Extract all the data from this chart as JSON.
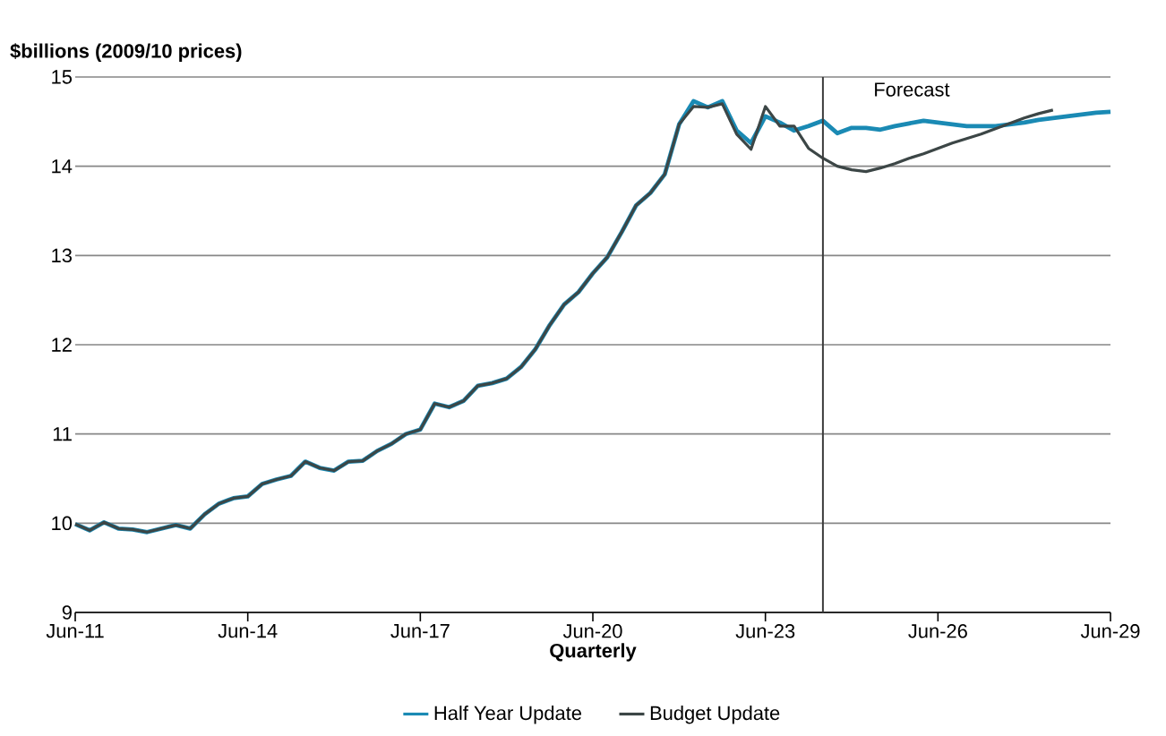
{
  "chart_data": {
    "type": "line",
    "ylabel": "$billions (2009/10 prices)",
    "xlabel": "Quarterly",
    "x": [
      "2011-06",
      "2011-09",
      "2011-12",
      "2012-03",
      "2012-06",
      "2012-09",
      "2012-12",
      "2013-03",
      "2013-06",
      "2013-09",
      "2013-12",
      "2014-03",
      "2014-06",
      "2014-09",
      "2014-12",
      "2015-03",
      "2015-06",
      "2015-09",
      "2015-12",
      "2016-03",
      "2016-06",
      "2016-09",
      "2016-12",
      "2017-03",
      "2017-06",
      "2017-09",
      "2017-12",
      "2018-03",
      "2018-06",
      "2018-09",
      "2018-12",
      "2019-03",
      "2019-06",
      "2019-09",
      "2019-12",
      "2020-03",
      "2020-06",
      "2020-09",
      "2020-12",
      "2021-03",
      "2021-06",
      "2021-09",
      "2021-12",
      "2022-03",
      "2022-06",
      "2022-09",
      "2022-12",
      "2023-03",
      "2023-06",
      "2023-09",
      "2023-12",
      "2024-03",
      "2024-06",
      "2024-09",
      "2024-12",
      "2025-03",
      "2025-06",
      "2025-09",
      "2025-12",
      "2026-03",
      "2026-06",
      "2026-09",
      "2026-12",
      "2027-03",
      "2027-06",
      "2027-09",
      "2027-12",
      "2028-03",
      "2028-06",
      "2028-09",
      "2028-12",
      "2029-03",
      "2029-06"
    ],
    "series": [
      {
        "name": "Half Year Update",
        "color": "#1a8ab4",
        "values": [
          9.99,
          9.92,
          10.01,
          9.94,
          9.93,
          9.9,
          9.94,
          9.98,
          9.94,
          10.1,
          10.22,
          10.28,
          10.3,
          10.44,
          10.49,
          10.53,
          10.69,
          10.62,
          10.59,
          10.69,
          10.7,
          10.81,
          10.89,
          11.0,
          11.05,
          11.34,
          11.3,
          11.37,
          11.54,
          11.57,
          11.62,
          11.75,
          11.95,
          12.22,
          12.45,
          12.59,
          12.8,
          12.98,
          13.26,
          13.56,
          13.7,
          13.91,
          14.47,
          14.73,
          14.66,
          14.73,
          14.4,
          14.26,
          14.56,
          14.49,
          14.4,
          14.45,
          14.51,
          14.37,
          14.43,
          14.43,
          14.41,
          14.45,
          14.48,
          14.51,
          14.49,
          14.47,
          14.45,
          14.45,
          14.45,
          14.47,
          14.49,
          14.52,
          14.54,
          14.56,
          14.58,
          14.6,
          14.61
        ]
      },
      {
        "name": "Budget Update",
        "color": "#3c4646",
        "values": [
          9.99,
          9.92,
          10.01,
          9.94,
          9.93,
          9.9,
          9.94,
          9.98,
          9.94,
          10.1,
          10.22,
          10.28,
          10.3,
          10.44,
          10.49,
          10.53,
          10.69,
          10.62,
          10.59,
          10.69,
          10.7,
          10.81,
          10.89,
          11.0,
          11.05,
          11.34,
          11.3,
          11.37,
          11.54,
          11.57,
          11.62,
          11.75,
          11.95,
          12.22,
          12.45,
          12.59,
          12.8,
          12.98,
          13.26,
          13.56,
          13.7,
          13.91,
          14.47,
          14.67,
          14.66,
          14.7,
          14.36,
          14.19,
          14.67,
          14.45,
          14.45,
          14.2,
          14.09,
          14.0,
          13.96,
          13.94,
          13.98,
          14.03,
          14.09,
          14.14,
          14.2,
          14.26,
          14.31,
          14.36,
          14.42,
          14.48,
          14.54,
          14.59,
          14.63,
          null,
          null,
          null,
          null
        ]
      }
    ],
    "xlim": [
      "2011-06",
      "2029-06"
    ],
    "xticks": [
      {
        "value": "2011-06",
        "label": "Jun-11"
      },
      {
        "value": "2014-06",
        "label": "Jun-14"
      },
      {
        "value": "2017-06",
        "label": "Jun-17"
      },
      {
        "value": "2020-06",
        "label": "Jun-20"
      },
      {
        "value": "2023-06",
        "label": "Jun-23"
      },
      {
        "value": "2026-06",
        "label": "Jun-26"
      },
      {
        "value": "2029-06",
        "label": "Jun-29"
      }
    ],
    "ylim": [
      9,
      15
    ],
    "yticks": [
      9,
      10,
      11,
      12,
      13,
      14,
      15
    ],
    "ref_lines": [
      {
        "axis": "x",
        "value": "2024-06",
        "label": "Forecast",
        "color": "#3c3c3c"
      }
    ],
    "grid": "y",
    "legend": "bottom",
    "marker": "none",
    "line_style": "solid"
  }
}
